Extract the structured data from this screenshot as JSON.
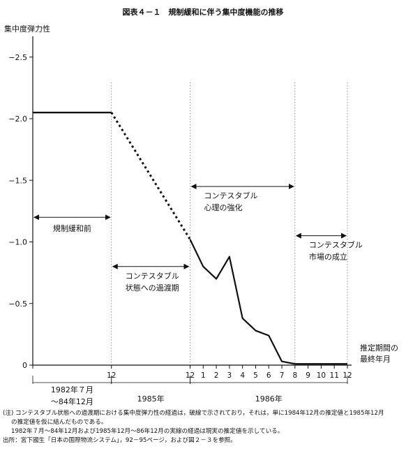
{
  "chart_data": {
    "type": "line",
    "title": "図表４－１　規制緩和に伴う集中度機能の推移",
    "ylabel": "集中度弾力性",
    "xlabel": "推定期間の\n最終年月",
    "ylim": [
      0,
      -2.7
    ],
    "yticks": [
      {
        "value": -2.5,
        "label": "−2.5"
      },
      {
        "value": -2.0,
        "label": "−2.0"
      },
      {
        "value": -1.5,
        "label": "−1.5"
      },
      {
        "value": -1.0,
        "label": "−1.0"
      },
      {
        "value": -0.5,
        "label": "−0.5"
      },
      {
        "value": 0,
        "label": "0"
      }
    ],
    "x_positions": [
      0,
      12,
      24,
      25,
      26,
      27,
      28,
      29,
      30,
      31,
      32,
      33,
      34,
      35,
      36
    ],
    "xtick_labels": [
      "",
      "12",
      "12",
      "1",
      "2",
      "3",
      "4",
      "5",
      "6",
      "7",
      "8",
      "9",
      "10",
      "11",
      "12"
    ],
    "solid_before": [
      [
        0,
        -2.05
      ],
      [
        12,
        -2.05
      ]
    ],
    "dotted": [
      [
        12,
        -2.05
      ],
      [
        24,
        -1.02
      ]
    ],
    "solid_after": [
      [
        24,
        -1.02
      ],
      [
        26,
        -0.8
      ],
      [
        28,
        -0.7
      ],
      [
        30,
        -0.88
      ],
      [
        32,
        -0.38
      ],
      [
        34,
        -0.28
      ],
      [
        36,
        -0.24
      ],
      [
        38,
        -0.03
      ],
      [
        40,
        -0.01
      ],
      [
        48,
        -0.01
      ]
    ],
    "period_labels": [
      {
        "text": "1982年７月\n～84年12月",
        "from": 0,
        "to": 12
      },
      {
        "text": "1985年",
        "from": 12,
        "to": 24
      },
      {
        "text": "1986年",
        "from": 24,
        "to": 48
      }
    ],
    "annotations": [
      {
        "text": "規制緩和前",
        "from": 0,
        "to": 12,
        "y": -1.2
      },
      {
        "text": "コンテスタブル\n状態への過渡期",
        "from": 12,
        "to": 24,
        "y": -0.8
      },
      {
        "text": "コンテスタブル\n心理の強化",
        "from": 24,
        "to": 40,
        "y": -1.45
      },
      {
        "text": "コンテスタブル\n市場の成立",
        "from": 40,
        "to": 48,
        "y": -1.05
      }
    ],
    "vlines": [
      12,
      24,
      40,
      48
    ]
  },
  "notes": [
    "(注) コンテスタブル状態への過渡期における集中度弾力性の経過は，破線で示されており，それは，単に1984年12月の推定値と1985年12月",
    "の推定値を仮に結んだものである。",
    "1982年７月～84年12月および1985年12月～86年12月の実線の経過は現実の推定値を示している。",
    "出所：宮下國生「日本の国際物流システム」，92－95ページ，および図２－３を参照。"
  ]
}
